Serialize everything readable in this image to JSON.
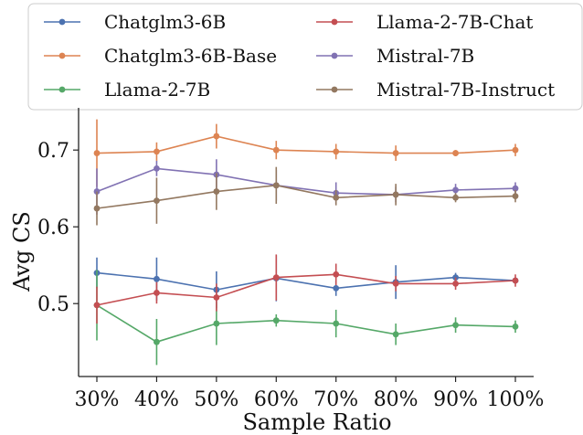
{
  "chart_data": {
    "type": "line",
    "x": [
      "30%",
      "40%",
      "50%",
      "60%",
      "70%",
      "80%",
      "90%",
      "100%"
    ],
    "xlabel": "Sample Ratio",
    "ylabel": "Avg CS",
    "ylim": [
      0.405,
      0.755
    ],
    "yticks": [
      0.5,
      0.6,
      0.7
    ],
    "ytick_labels": [
      "0.5",
      "0.6",
      "0.7"
    ],
    "grid": false,
    "legend_position": "top, above plot, 2 columns",
    "error_bars": true,
    "series": [
      {
        "name": "Chatglm3-6B",
        "color": "#4c72b0",
        "values": [
          0.54,
          0.532,
          0.518,
          0.533,
          0.52,
          0.528,
          0.534,
          0.53
        ],
        "err": [
          0.02,
          0.028,
          0.024,
          0.03,
          0.01,
          0.022,
          0.006,
          0.004
        ]
      },
      {
        "name": "Chatglm3-6B-Base",
        "color": "#dd8452",
        "values": [
          0.696,
          0.698,
          0.718,
          0.7,
          0.698,
          0.696,
          0.696,
          0.7
        ],
        "err": [
          0.044,
          0.012,
          0.016,
          0.012,
          0.01,
          0.01,
          0.004,
          0.008
        ]
      },
      {
        "name": "Llama-2-7B",
        "color": "#55a868",
        "values": [
          0.498,
          0.45,
          0.474,
          0.478,
          0.474,
          0.46,
          0.472,
          0.47
        ],
        "err": [
          0.046,
          0.03,
          0.028,
          0.008,
          0.018,
          0.014,
          0.01,
          0.008
        ]
      },
      {
        "name": "Llama-2-7B-Chat",
        "color": "#c44e52",
        "values": [
          0.498,
          0.514,
          0.508,
          0.534,
          0.538,
          0.526,
          0.526,
          0.53
        ],
        "err": [
          0.024,
          0.014,
          0.018,
          0.03,
          0.014,
          0.01,
          0.008,
          0.008
        ]
      },
      {
        "name": "Mistral-7B",
        "color": "#8172b3",
        "values": [
          0.646,
          0.676,
          0.668,
          0.654,
          0.644,
          0.642,
          0.648,
          0.65
        ],
        "err": [
          0.03,
          0.01,
          0.02,
          0.02,
          0.014,
          0.01,
          0.008,
          0.008
        ]
      },
      {
        "name": "Mistral-7B-Instruct",
        "color": "#937860",
        "values": [
          0.624,
          0.634,
          0.646,
          0.654,
          0.638,
          0.642,
          0.638,
          0.64
        ],
        "err": [
          0.022,
          0.03,
          0.024,
          0.024,
          0.01,
          0.014,
          0.006,
          0.008
        ]
      }
    ]
  }
}
